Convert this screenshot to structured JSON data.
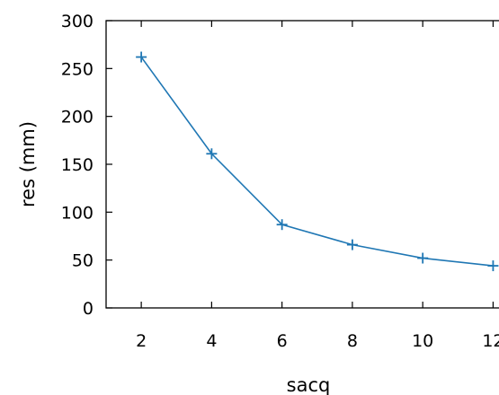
{
  "chart_data": {
    "type": "line",
    "xlabel": "sacq",
    "ylabel": "res (mm)",
    "xlim": [
      1,
      12.5
    ],
    "ylim": [
      0,
      300
    ],
    "x_ticks": [
      2,
      4,
      6,
      8,
      10,
      12
    ],
    "y_ticks": [
      0,
      50,
      100,
      150,
      200,
      250,
      300
    ],
    "x_tick_labels": [
      "2",
      "4",
      "6",
      "8",
      "10",
      "12"
    ],
    "y_tick_labels": [
      "0",
      "50",
      "100",
      "150",
      "200",
      "250",
      "300"
    ],
    "grid": false,
    "series": [
      {
        "x": [
          2,
          4,
          6,
          8,
          10,
          12
        ],
        "values": [
          262,
          161,
          87,
          66,
          52,
          44
        ],
        "color": "#1f77b4",
        "marker": "plus"
      }
    ]
  }
}
